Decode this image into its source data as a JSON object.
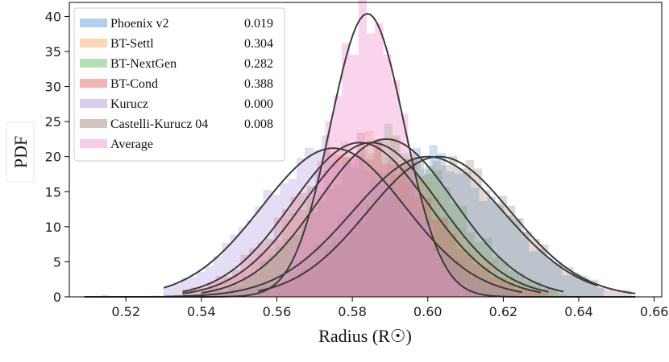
{
  "chart_data": {
    "type": "histogram",
    "title": "",
    "xlabel": "Radius (R☉)",
    "ylabel": "PDF",
    "xlim": [
      0.505,
      0.662
    ],
    "ylim": [
      0,
      42
    ],
    "xticks": [
      "0.52",
      "0.54",
      "0.56",
      "0.58",
      "0.60",
      "0.62",
      "0.64",
      "0.66"
    ],
    "yticks": [
      "0",
      "5",
      "10",
      "15",
      "20",
      "25",
      "30",
      "35",
      "40"
    ],
    "grid": false,
    "legend_position": "top-left",
    "series": [
      {
        "name": "Phoenix v2",
        "value": "0.019",
        "color": "#4f9ad9",
        "mean": 0.6,
        "sigma": 0.02,
        "peak": 20.0,
        "range": [
          0.53,
          0.645
        ]
      },
      {
        "name": "BT-Settl",
        "value": "0.304",
        "color": "#f5a45c",
        "mean": 0.585,
        "sigma": 0.018,
        "peak": 22.0,
        "range": [
          0.535,
          0.632
        ]
      },
      {
        "name": "BT-NextGen",
        "value": "0.282",
        "color": "#5cb85c",
        "mean": 0.589,
        "sigma": 0.018,
        "peak": 22.5,
        "range": [
          0.54,
          0.636
        ]
      },
      {
        "name": "BT-Cond",
        "value": "0.388",
        "color": "#e05a5a",
        "mean": 0.582,
        "sigma": 0.018,
        "peak": 22.0,
        "range": [
          0.535,
          0.63
        ]
      },
      {
        "name": "Kurucz",
        "value": "0.000",
        "color": "#a98fd6",
        "mean": 0.575,
        "sigma": 0.019,
        "peak": 21.2,
        "range": [
          0.53,
          0.625
        ]
      },
      {
        "name": "Castelli-Kurucz 04",
        "value": "0.008",
        "color": "#a07d70",
        "mean": 0.603,
        "sigma": 0.019,
        "peak": 20.0,
        "range": [
          0.555,
          0.655
        ]
      },
      {
        "name": "Average",
        "value": "",
        "color": "#f08fce",
        "mean": 0.584,
        "sigma": 0.0098,
        "peak": 40.4,
        "range": [
          0.509,
          0.655
        ]
      }
    ]
  }
}
